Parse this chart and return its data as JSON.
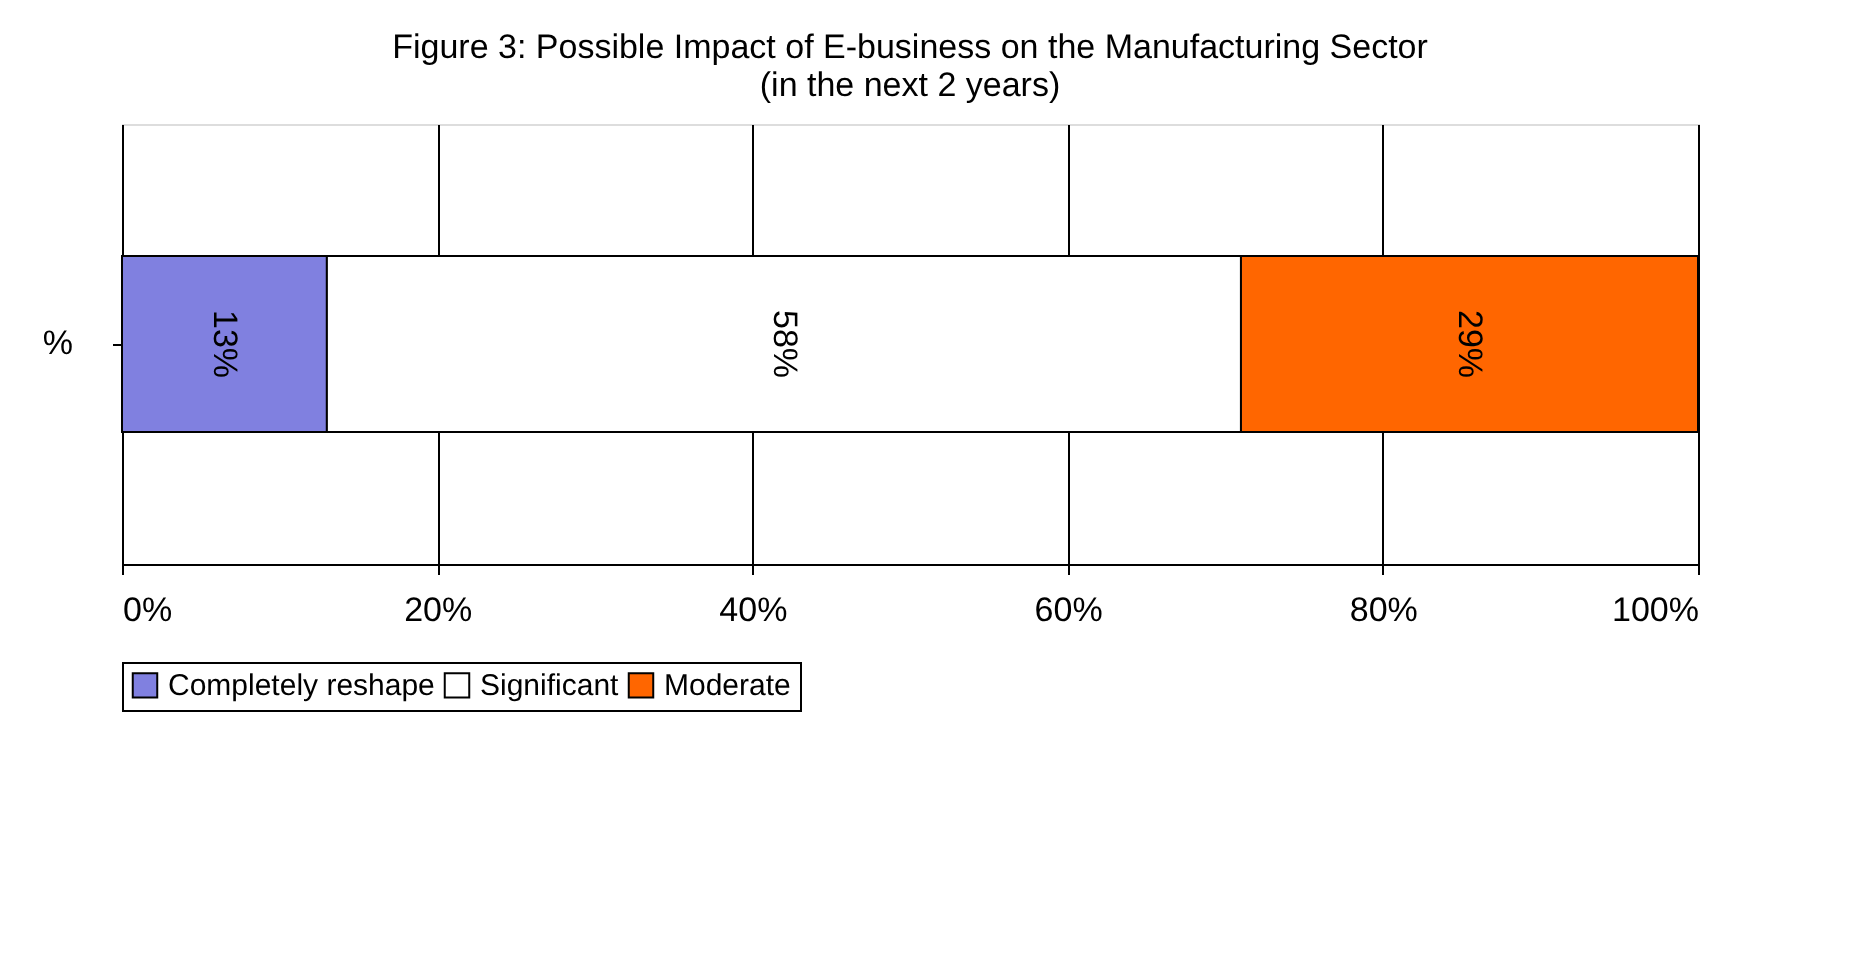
{
  "chart_data": {
    "type": "bar",
    "title": "Figure 3: Possible Impact of E-business on the Manufacturing Sector\n(in the next 2 years)",
    "orientation": "horizontal",
    "stacked": true,
    "categories": [
      "%"
    ],
    "series": [
      {
        "name": "Completely reshape",
        "color": "#8080e0",
        "values": [
          13
        ],
        "value_labels": [
          "13%"
        ]
      },
      {
        "name": "Significant",
        "color": "#ffffff",
        "values": [
          58
        ],
        "value_labels": [
          "58%"
        ]
      },
      {
        "name": "Moderate",
        "color": "#ff6600",
        "values": [
          29
        ],
        "value_labels": [
          "29%"
        ]
      }
    ],
    "xlim": [
      0,
      100
    ],
    "xticks": [
      {
        "value": 0,
        "label": "0%"
      },
      {
        "value": 20,
        "label": "20%"
      },
      {
        "value": 40,
        "label": "40%"
      },
      {
        "value": 60,
        "label": "60%"
      },
      {
        "value": 80,
        "label": "80%"
      },
      {
        "value": 100,
        "label": "100%"
      }
    ],
    "grid": "x",
    "legend": "bottom"
  }
}
